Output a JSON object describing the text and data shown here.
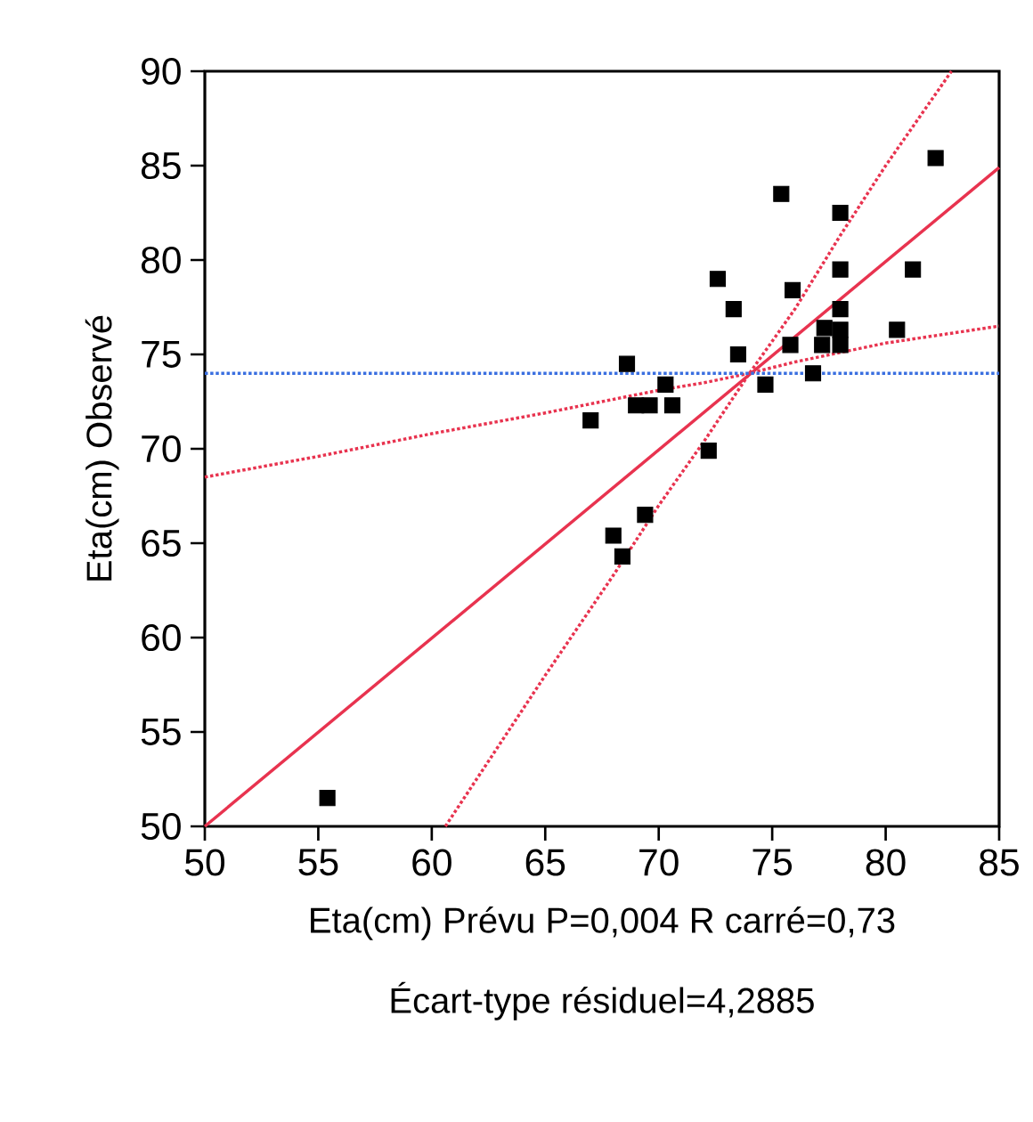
{
  "chart_data": {
    "type": "scatter",
    "xlabel": "Eta(cm) Prévu P=0,004 R carré=0,73",
    "ylabel": "Eta(cm) Observé",
    "annotations": [
      "Écart-type résiduel=4,2885"
    ],
    "xlim": [
      50,
      85
    ],
    "ylim": [
      50,
      90
    ],
    "xticks": [
      50,
      55,
      60,
      65,
      70,
      75,
      80,
      85
    ],
    "yticks": [
      50,
      55,
      60,
      65,
      70,
      75,
      80,
      85,
      90
    ],
    "grid": false,
    "series": [
      {
        "marker": "square",
        "color": "#000000",
        "x": [
          55.4,
          67.0,
          68.0,
          68.4,
          68.6,
          69.0,
          69.6,
          69.4,
          70.3,
          70.6,
          72.2,
          72.6,
          73.3,
          73.5,
          74.7,
          75.8,
          75.9,
          76.8,
          77.2,
          77.3,
          78.0,
          78.0,
          78.0,
          78.0,
          78.0,
          80.5,
          81.2,
          82.2,
          75.4
        ],
        "values": [
          51.5,
          71.5,
          65.4,
          64.3,
          74.5,
          72.3,
          72.3,
          66.5,
          73.4,
          72.3,
          69.9,
          79.0,
          77.4,
          75.0,
          73.4,
          75.5,
          78.4,
          74.0,
          75.5,
          76.4,
          82.5,
          79.5,
          77.4,
          76.3,
          75.5,
          76.3,
          79.5,
          85.4,
          83.5
        ]
      },
      {
        "type": "line",
        "line_style": "solid",
        "color": "#e8334f",
        "x": [
          50,
          85
        ],
        "values": [
          50,
          84.9
        ]
      },
      {
        "type": "line",
        "line_style": "dotted",
        "color": "#e8334f",
        "x": [
          50,
          55,
          60,
          65,
          70,
          72,
          74,
          76,
          78,
          80,
          85
        ],
        "values": [
          68.5,
          69.6,
          70.8,
          71.9,
          73.1,
          73.5,
          74.0,
          74.6,
          75.1,
          75.6,
          76.5
        ]
      },
      {
        "type": "line",
        "line_style": "dotted",
        "color": "#e8334f",
        "x": [
          60.6,
          65,
          68,
          70,
          72,
          74,
          76,
          78,
          80,
          82.9
        ],
        "values": [
          50,
          58.0,
          63.3,
          67.0,
          70.4,
          74.0,
          77.4,
          81.3,
          85.0,
          90
        ]
      }
    ],
    "ref_lines": [
      {
        "axis": "y",
        "value": 74.0,
        "color": "#3a6fe0",
        "line_style": "dotted"
      }
    ]
  }
}
